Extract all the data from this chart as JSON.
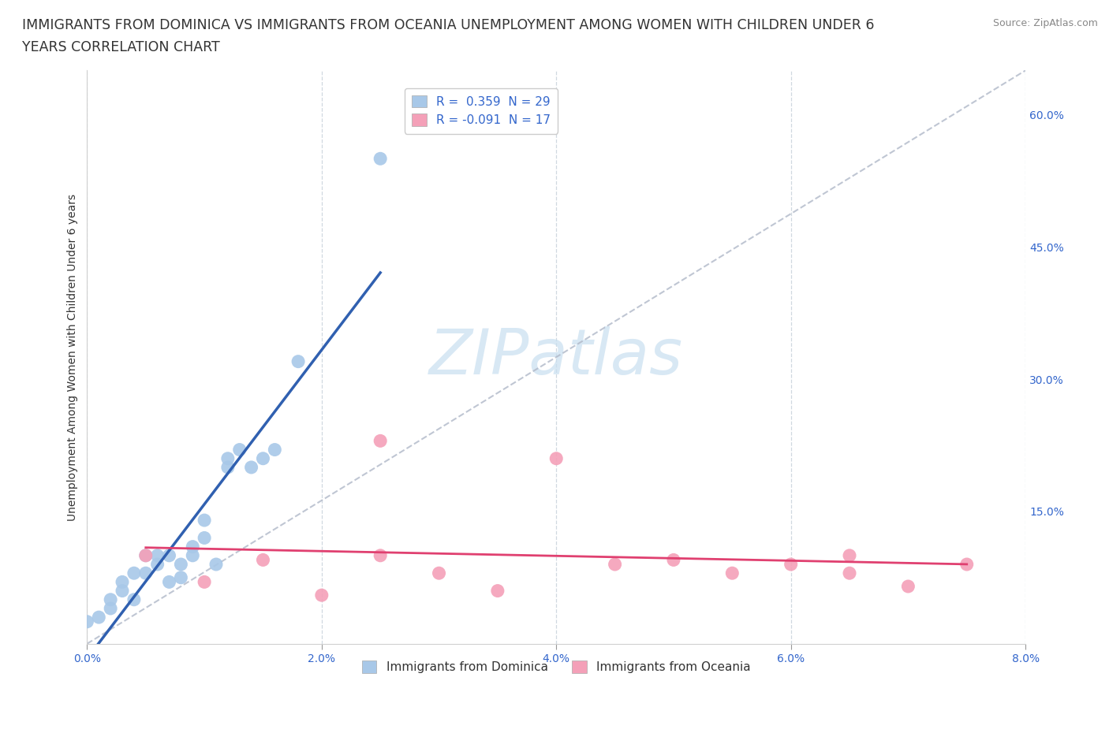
{
  "title_line1": "IMMIGRANTS FROM DOMINICA VS IMMIGRANTS FROM OCEANIA UNEMPLOYMENT AMONG WOMEN WITH CHILDREN UNDER 6",
  "title_line2": "YEARS CORRELATION CHART",
  "source": "Source: ZipAtlas.com",
  "ylabel": "Unemployment Among Women with Children Under 6 years",
  "xlim": [
    0.0,
    0.08
  ],
  "ylim": [
    0.0,
    0.65
  ],
  "xticks": [
    0.0,
    0.02,
    0.04,
    0.06,
    0.08
  ],
  "xticklabels": [
    "0.0%",
    "2.0%",
    "4.0%",
    "6.0%",
    "8.0%"
  ],
  "yticks": [
    0.0,
    0.15,
    0.3,
    0.45,
    0.6
  ],
  "yticklabels": [
    "",
    "15.0%",
    "30.0%",
    "45.0%",
    "60.0%"
  ],
  "dominica_R": 0.359,
  "dominica_N": 29,
  "oceania_R": -0.091,
  "oceania_N": 17,
  "dominica_color": "#a8c8e8",
  "dominica_line_color": "#3060b0",
  "oceania_color": "#f4a0b8",
  "oceania_line_color": "#e04070",
  "background_color": "#ffffff",
  "dominica_x": [
    0.0,
    0.001,
    0.002,
    0.002,
    0.003,
    0.003,
    0.004,
    0.004,
    0.005,
    0.005,
    0.006,
    0.006,
    0.007,
    0.007,
    0.008,
    0.008,
    0.009,
    0.009,
    0.01,
    0.01,
    0.011,
    0.012,
    0.012,
    0.013,
    0.014,
    0.015,
    0.016,
    0.018,
    0.025
  ],
  "dominica_y": [
    0.025,
    0.03,
    0.04,
    0.05,
    0.06,
    0.07,
    0.05,
    0.08,
    0.08,
    0.1,
    0.09,
    0.1,
    0.07,
    0.1,
    0.075,
    0.09,
    0.1,
    0.11,
    0.12,
    0.14,
    0.09,
    0.2,
    0.21,
    0.22,
    0.2,
    0.21,
    0.22,
    0.32,
    0.55
  ],
  "oceania_x": [
    0.005,
    0.01,
    0.015,
    0.02,
    0.025,
    0.025,
    0.03,
    0.035,
    0.04,
    0.045,
    0.05,
    0.055,
    0.06,
    0.065,
    0.065,
    0.07,
    0.075
  ],
  "oceania_y": [
    0.1,
    0.07,
    0.095,
    0.055,
    0.1,
    0.23,
    0.08,
    0.06,
    0.21,
    0.09,
    0.095,
    0.08,
    0.09,
    0.08,
    0.1,
    0.065,
    0.09
  ],
  "legend_label_dominica": "Immigrants from Dominica",
  "legend_label_oceania": "Immigrants from Oceania",
  "title_fontsize": 12.5,
  "axis_label_fontsize": 10,
  "tick_fontsize": 10,
  "legend_fontsize": 11,
  "watermark_text": "ZIPatlas",
  "watermark_color": "#c8dff0"
}
